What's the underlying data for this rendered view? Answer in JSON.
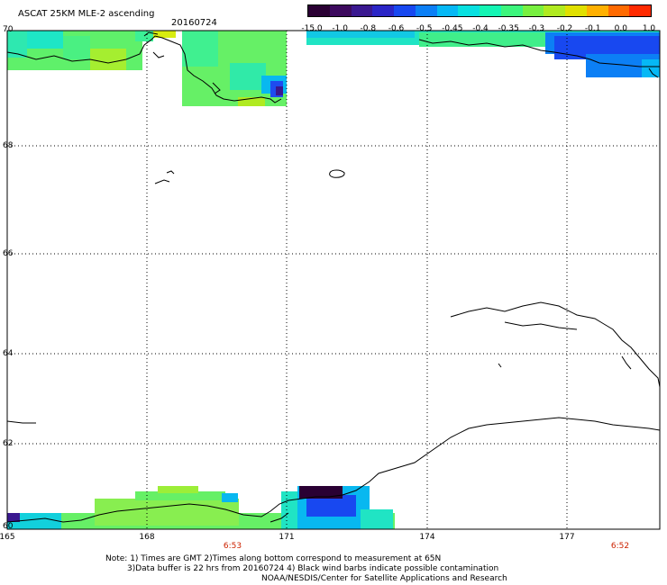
{
  "header": {
    "title": "ASCAT 25KM MLE-2 ascending",
    "date": "20160724"
  },
  "colorbar": {
    "labels": [
      "-15.0",
      "-1.0",
      "-0.8",
      "-0.6",
      "-0.5",
      "-0.45",
      "-0.4",
      "-0.35",
      "-0.3",
      "-0.2",
      "-0.1",
      "0.0",
      "1.0"
    ],
    "colors": [
      "#2a0033",
      "#3d0a5e",
      "#3a1890",
      "#2b25c6",
      "#1848f0",
      "#0c7ff5",
      "#06b8f5",
      "#08e0e0",
      "#14f5b4",
      "#3cf57c",
      "#78f040",
      "#b0ea20",
      "#e0e000",
      "#ffb000",
      "#ff6a00",
      "#ff2a00"
    ]
  },
  "map": {
    "lat_labels": [
      "70",
      "68",
      "66",
      "64",
      "62",
      "60"
    ],
    "lon_labels": [
      "165",
      "168",
      "171",
      "174",
      "177"
    ],
    "time_labels": [
      "6:53",
      "6:52"
    ]
  },
  "footer": {
    "note1": "Note: 1) Times are GMT 2)Times along bottom correspond to measurement at 65N",
    "note2": "3)Data buffer is 22 hrs from 20160724 4) Black wind barbs indicate possible contamination",
    "credit": "NOAA/NESDIS/Center for Satellite Applications and Research"
  }
}
